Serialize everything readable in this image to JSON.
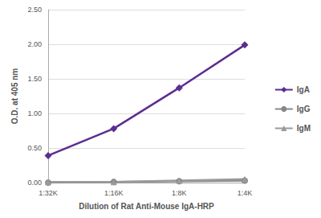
{
  "chart_data": {
    "type": "line",
    "x_label": "Dilution of Rat Anti-Mouse IgA-HRP",
    "y_label": "O.D. at 405 nm",
    "categories": [
      "1:32K",
      "1:16K",
      "1:8K",
      "1:4K"
    ],
    "series": [
      {
        "name": "IgA",
        "color": "#5c2d91",
        "marker": "diamond",
        "values": [
          0.39,
          0.78,
          1.37,
          1.99
        ]
      },
      {
        "name": "IgG",
        "color": "#888888",
        "marker": "circle",
        "values": [
          0.0,
          0.01,
          0.02,
          0.03
        ]
      },
      {
        "name": "IgM",
        "color": "#9a9a9a",
        "marker": "triangle",
        "values": [
          0.01,
          0.01,
          0.03,
          0.05
        ]
      }
    ],
    "ylim": [
      0,
      2.5
    ],
    "yticks": [
      {
        "value": 0,
        "label": "0.00"
      },
      {
        "value": 0.5,
        "label": "0.50"
      },
      {
        "value": 1,
        "label": "1.00"
      },
      {
        "value": 1.5,
        "label": "1.50"
      },
      {
        "value": 2,
        "label": "2.00"
      },
      {
        "value": 2.5,
        "label": "2.50"
      }
    ],
    "grid": true,
    "legend": "right"
  }
}
